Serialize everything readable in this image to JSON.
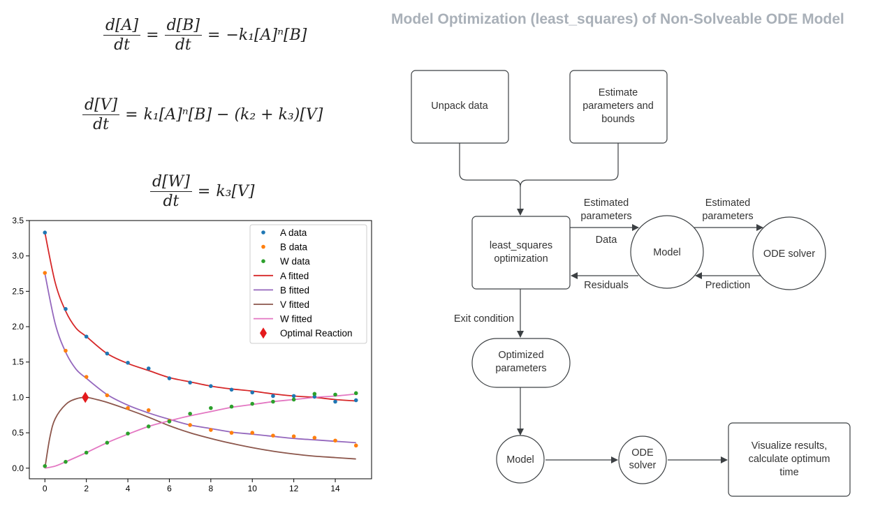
{
  "equations": {
    "eq1": {
      "lhs1_num": "d[A]",
      "lhs1_den": "dt",
      "lhs2_num": "d[B]",
      "lhs2_den": "dt",
      "rhs": "−k₁[A]ⁿ[B]"
    },
    "eq2": {
      "lhs_num": "d[V]",
      "lhs_den": "dt",
      "rhs": "k₁[A]ⁿ[B] − (k₂ + k₃)[V]"
    },
    "eq3": {
      "lhs_num": "d[W]",
      "lhs_den": "dt",
      "rhs": "k₃[V]"
    },
    "equals": "="
  },
  "flowchart": {
    "title": "Model Optimization (least_squares) of Non-Solveable ODE Model",
    "unpack": "Unpack data",
    "estimate": [
      "Estimate",
      "parameters and",
      "bounds"
    ],
    "least_squares": [
      "least_squares",
      "optimization"
    ],
    "model": "Model",
    "ode_solver": "ODE solver",
    "est_params_1": [
      "Estimated",
      "parameters"
    ],
    "data": "Data",
    "residuals": "Residuals",
    "est_params_2": [
      "Estimated",
      "parameters"
    ],
    "prediction": "Prediction",
    "exit_condition": "Exit condition",
    "optimized": [
      "Optimized",
      "parameters"
    ],
    "model2": "Model",
    "ode_solver2": [
      "ODE",
      "solver"
    ],
    "visualize": [
      "Visualize results,",
      "calculate optimum",
      "time"
    ]
  },
  "chart_data": {
    "type": "line",
    "xlim": [
      -0.75,
      15.75
    ],
    "ylim": [
      -0.15,
      3.5
    ],
    "xticks": [
      0,
      2,
      4,
      6,
      8,
      10,
      12,
      14
    ],
    "yticks": [
      0.0,
      0.5,
      1.0,
      1.5,
      2.0,
      2.5,
      3.0,
      3.5
    ],
    "grid": false,
    "legend_position": "top-right",
    "data_series": [
      {
        "name": "A data",
        "color": "#1f77b4",
        "x": [
          0,
          1,
          2,
          3,
          4,
          5,
          6,
          7,
          8,
          9,
          10,
          11,
          12,
          13,
          14,
          15
        ],
        "y": [
          3.33,
          2.25,
          1.86,
          1.62,
          1.49,
          1.41,
          1.27,
          1.21,
          1.16,
          1.11,
          1.07,
          1.02,
          1.02,
          1.01,
          0.94,
          0.96
        ]
      },
      {
        "name": "B data",
        "color": "#ff7f0e",
        "x": [
          0,
          1,
          2,
          3,
          4,
          5,
          6,
          7,
          8,
          9,
          10,
          11,
          12,
          13,
          14,
          15
        ],
        "y": [
          2.76,
          1.66,
          1.29,
          1.03,
          0.85,
          0.82,
          0.67,
          0.61,
          0.54,
          0.5,
          0.5,
          0.46,
          0.45,
          0.43,
          0.39,
          0.32
        ]
      },
      {
        "name": "W data",
        "color": "#2ca02c",
        "x": [
          0,
          1,
          2,
          3,
          4,
          5,
          6,
          7,
          8,
          9,
          10,
          11,
          12,
          13,
          14,
          15
        ],
        "y": [
          0.03,
          0.09,
          0.22,
          0.36,
          0.49,
          0.59,
          0.66,
          0.77,
          0.85,
          0.87,
          0.91,
          0.94,
          0.97,
          1.05,
          1.04,
          1.06
        ]
      }
    ],
    "fitted_series": [
      {
        "name": "A fitted",
        "color": "#d62728",
        "x": [
          0,
          0.5,
          1,
          1.5,
          2,
          3,
          4,
          5,
          6,
          7,
          8,
          9,
          10,
          11,
          12,
          13,
          14,
          15
        ],
        "y": [
          3.33,
          2.62,
          2.22,
          1.98,
          1.86,
          1.62,
          1.48,
          1.38,
          1.28,
          1.22,
          1.16,
          1.12,
          1.09,
          1.05,
          1.02,
          1.0,
          0.97,
          0.95
        ]
      },
      {
        "name": "B fitted",
        "color": "#9467bd",
        "x": [
          0,
          0.5,
          1,
          1.5,
          2,
          3,
          4,
          5,
          6,
          7,
          8,
          9,
          10,
          11,
          12,
          13,
          14,
          15
        ],
        "y": [
          2.75,
          2.04,
          1.64,
          1.4,
          1.27,
          1.04,
          0.89,
          0.78,
          0.69,
          0.61,
          0.56,
          0.51,
          0.48,
          0.45,
          0.42,
          0.4,
          0.38,
          0.36
        ]
      },
      {
        "name": "V fitted",
        "color": "#8c564b",
        "x": [
          0,
          0.25,
          0.5,
          1,
          1.5,
          2,
          2.5,
          3,
          4,
          5,
          6,
          7,
          8,
          9,
          10,
          11,
          12,
          13,
          14,
          15
        ],
        "y": [
          0.0,
          0.45,
          0.7,
          0.9,
          0.98,
          1.0,
          0.97,
          0.93,
          0.83,
          0.72,
          0.6,
          0.5,
          0.42,
          0.35,
          0.29,
          0.24,
          0.2,
          0.17,
          0.15,
          0.13
        ]
      },
      {
        "name": "W fitted",
        "color": "#e377c2",
        "x": [
          0,
          0.5,
          1,
          2,
          3,
          4,
          5,
          6,
          7,
          8,
          9,
          10,
          11,
          12,
          13,
          14,
          15
        ],
        "y": [
          0.0,
          0.03,
          0.09,
          0.22,
          0.36,
          0.48,
          0.59,
          0.67,
          0.74,
          0.8,
          0.86,
          0.9,
          0.94,
          0.97,
          1.0,
          1.02,
          1.05
        ]
      }
    ],
    "optimal": {
      "name": "Optimal Reaction",
      "color": "#e41a1c",
      "x": 1.95,
      "y": 1.0
    },
    "legend": [
      "A data",
      "B data",
      "W data",
      "A fitted",
      "B fitted",
      "V fitted",
      "W fitted",
      "Optimal Reaction"
    ]
  }
}
